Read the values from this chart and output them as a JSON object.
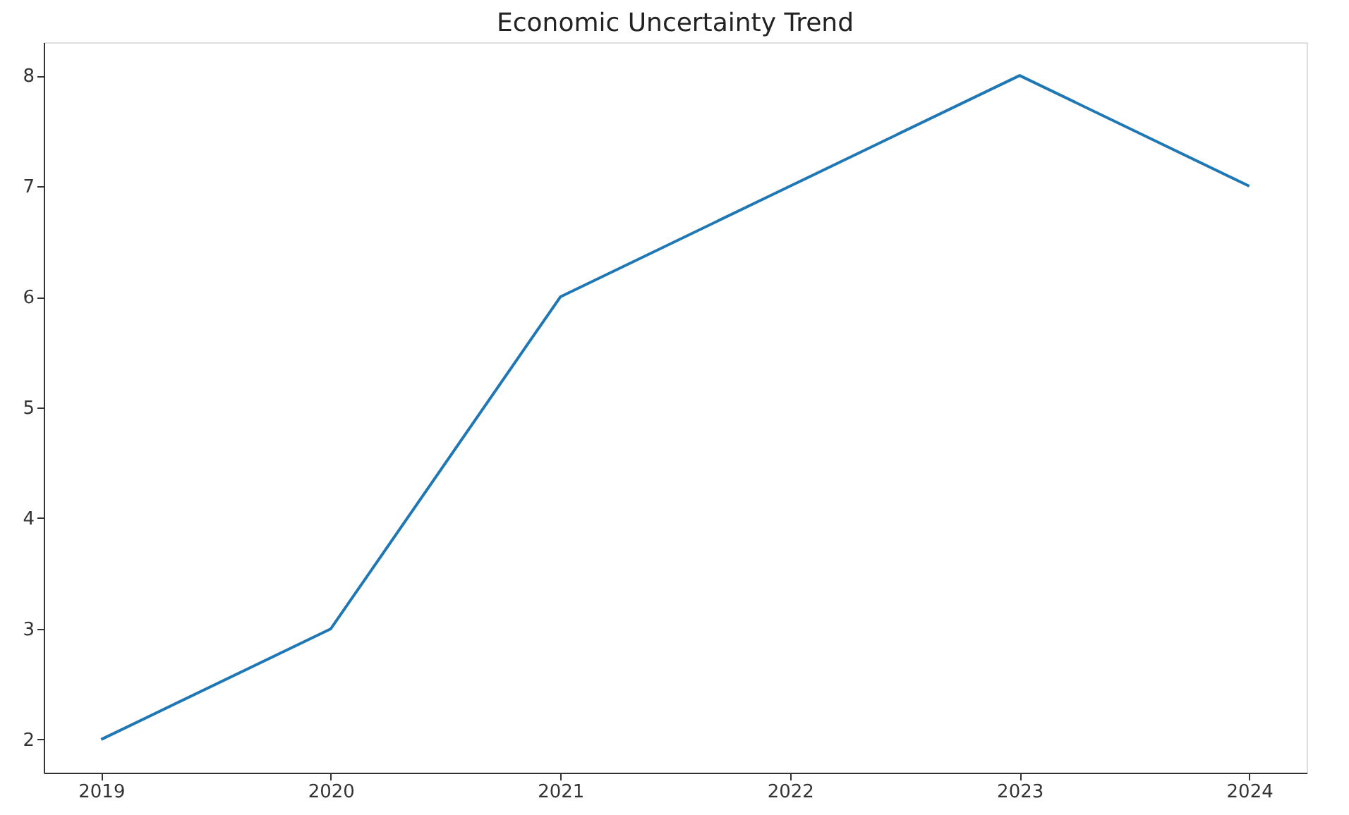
{
  "chart_data": {
    "type": "line",
    "title": "Economic Uncertainty Trend",
    "x": [
      2019,
      2020,
      2021,
      2022,
      2023,
      2024
    ],
    "series": [
      {
        "color": "#1f77b4",
        "values": [
          2,
          3,
          6,
          7,
          8,
          7
        ]
      }
    ],
    "xlim": [
      2018.75,
      2024.25
    ],
    "xticks": [
      2019,
      2020,
      2021,
      2022,
      2023,
      2024
    ],
    "ylim": [
      1.7,
      8.3
    ],
    "yticks": [
      2,
      3,
      4,
      5,
      6,
      7,
      8
    ],
    "grid": false,
    "marker": "none",
    "line_style": "solid"
  }
}
